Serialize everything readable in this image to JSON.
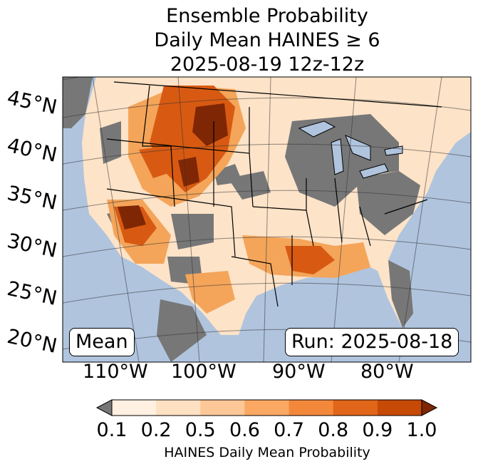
{
  "title": {
    "line1": "Ensemble Probability",
    "line2": "Daily Mean HAINES ≥ 6",
    "line3": "2025-08-19 12z-12z"
  },
  "map": {
    "lat_labels": [
      "45°N",
      "40°N",
      "35°N",
      "30°N",
      "25°N",
      "20°N"
    ],
    "lon_labels": [
      "110°W",
      "100°W",
      "90°W",
      "80°W"
    ],
    "mean_label": "Mean",
    "run_label": "Run: 2025-08-18",
    "colors": {
      "ocean": "#b0c4de",
      "no_data_land": "#777777",
      "low": "#fdebd9",
      "mid": "#f4a55a",
      "high": "#d85a12",
      "max": "#7f2704"
    }
  },
  "colorbar": {
    "ticks": [
      "0.1",
      "0.2",
      "0.5",
      "0.6",
      "0.7",
      "0.8",
      "0.9",
      "1.0"
    ],
    "colors": [
      "#fff0e1",
      "#fee0c2",
      "#fdc797",
      "#fba863",
      "#f3883b",
      "#e26619",
      "#c64a05"
    ],
    "under_color": "#777777",
    "over_color": "#7f2704",
    "label": "HAINES Daily Mean Probability"
  }
}
